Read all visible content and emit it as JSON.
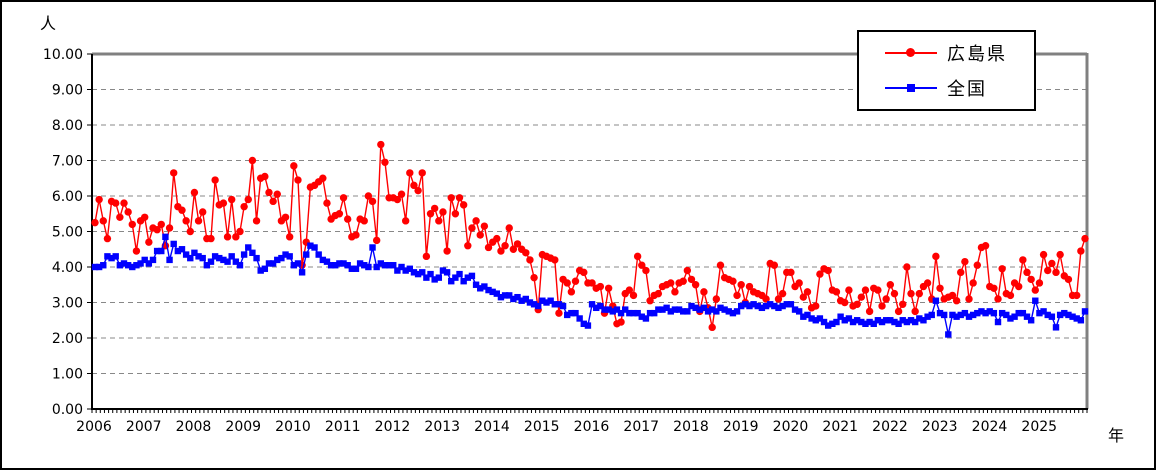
{
  "chart_data": {
    "type": "line",
    "title": "",
    "ylabel": "人",
    "xlabel": "年",
    "ylim": [
      0,
      10
    ],
    "ytick_step": 1,
    "ytick_labels": [
      "0.00",
      "1.00",
      "2.00",
      "3.00",
      "4.00",
      "5.00",
      "6.00",
      "7.00",
      "8.00",
      "9.00",
      "10.00"
    ],
    "x_years": [
      "2006",
      "2007",
      "2008",
      "2009",
      "2010",
      "2011",
      "2012",
      "2013",
      "2014",
      "2015",
      "2016",
      "2017",
      "2018",
      "2019",
      "2020",
      "2021",
      "2022",
      "2023",
      "2024",
      "2025"
    ],
    "x_unit": "month",
    "points_per_year": 12,
    "grid": "horizontal-dashed",
    "legend_position": "top-right",
    "colors": {
      "grid": "#888888",
      "frame_top_right": "#808080",
      "axis": "#000000",
      "background": "#ffffff"
    },
    "series": [
      {
        "name": "広島県",
        "color": "#ff0000",
        "marker": "circle",
        "values": [
          5.25,
          5.9,
          5.3,
          4.8,
          5.85,
          5.8,
          5.4,
          5.8,
          5.55,
          5.2,
          4.45,
          5.3,
          5.4,
          4.7,
          5.1,
          5.05,
          5.2,
          4.6,
          5.1,
          6.65,
          5.7,
          5.6,
          5.3,
          5.0,
          6.1,
          5.3,
          5.55,
          4.8,
          4.8,
          6.45,
          5.75,
          5.8,
          4.85,
          5.9,
          4.85,
          5.0,
          5.7,
          5.9,
          7.0,
          5.3,
          6.5,
          6.55,
          6.1,
          5.85,
          6.05,
          5.3,
          5.4,
          4.85,
          6.85,
          6.45,
          4.05,
          4.7,
          6.25,
          6.3,
          6.4,
          6.5,
          5.8,
          5.35,
          5.45,
          5.5,
          5.95,
          5.35,
          4.85,
          4.9,
          5.35,
          5.3,
          6.0,
          5.85,
          4.75,
          7.45,
          6.95,
          5.95,
          5.95,
          5.9,
          6.05,
          5.3,
          6.65,
          6.3,
          6.15,
          6.65,
          4.3,
          5.5,
          5.65,
          5.3,
          5.55,
          4.45,
          5.95,
          5.5,
          5.95,
          5.75,
          4.6,
          5.1,
          5.3,
          4.9,
          5.15,
          4.55,
          4.7,
          4.8,
          4.45,
          4.6,
          5.1,
          4.5,
          4.65,
          4.5,
          4.4,
          4.2,
          3.7,
          2.8,
          4.35,
          4.3,
          4.25,
          4.2,
          2.7,
          3.65,
          3.55,
          3.3,
          3.6,
          3.9,
          3.85,
          3.55,
          3.55,
          3.4,
          3.45,
          2.7,
          3.4,
          2.9,
          2.4,
          2.45,
          3.25,
          3.35,
          3.2,
          4.3,
          4.05,
          3.9,
          3.05,
          3.2,
          3.25,
          3.45,
          3.5,
          3.55,
          3.3,
          3.55,
          3.6,
          3.9,
          3.65,
          3.5,
          2.75,
          3.3,
          2.85,
          2.3,
          3.1,
          4.05,
          3.7,
          3.65,
          3.6,
          3.2,
          3.5,
          3.0,
          3.45,
          3.3,
          3.25,
          3.2,
          3.1,
          4.1,
          4.05,
          3.1,
          3.25,
          3.85,
          3.85,
          3.45,
          3.55,
          3.15,
          3.3,
          2.85,
          2.9,
          3.8,
          3.95,
          3.9,
          3.35,
          3.3,
          3.05,
          3.0,
          3.35,
          2.9,
          2.95,
          3.15,
          3.35,
          2.75,
          3.4,
          3.35,
          2.9,
          3.1,
          3.5,
          3.25,
          2.75,
          2.95,
          4.0,
          3.25,
          2.75,
          3.25,
          3.45,
          3.55,
          3.1,
          4.3,
          3.4,
          3.1,
          3.15,
          3.2,
          3.05,
          3.85,
          4.15,
          3.1,
          3.55,
          4.05,
          4.55,
          4.6,
          3.45,
          3.4,
          3.1,
          3.95,
          3.25,
          3.2,
          3.55,
          3.45,
          4.2,
          3.85,
          3.65,
          3.35,
          3.55,
          4.35,
          3.9,
          4.1,
          3.85,
          4.35,
          3.75,
          3.65,
          3.2,
          3.2,
          4.45,
          4.8
        ]
      },
      {
        "name": "全国",
        "color": "#0000ff",
        "marker": "square",
        "values": [
          4.0,
          4.0,
          4.05,
          4.3,
          4.25,
          4.3,
          4.05,
          4.1,
          4.05,
          4.0,
          4.05,
          4.1,
          4.2,
          4.1,
          4.2,
          4.45,
          4.45,
          4.85,
          4.2,
          4.65,
          4.45,
          4.5,
          4.35,
          4.25,
          4.4,
          4.3,
          4.25,
          4.05,
          4.15,
          4.3,
          4.25,
          4.2,
          4.15,
          4.3,
          4.15,
          4.05,
          4.35,
          4.55,
          4.4,
          4.25,
          3.9,
          3.95,
          4.1,
          4.1,
          4.2,
          4.25,
          4.35,
          4.3,
          4.05,
          4.1,
          3.85,
          4.35,
          4.6,
          4.55,
          4.35,
          4.2,
          4.15,
          4.05,
          4.05,
          4.1,
          4.1,
          4.05,
          3.95,
          3.95,
          4.1,
          4.05,
          4.0,
          4.55,
          4.0,
          4.1,
          4.05,
          4.05,
          4.05,
          3.9,
          4.0,
          3.9,
          3.95,
          3.85,
          3.8,
          3.85,
          3.7,
          3.8,
          3.65,
          3.7,
          3.9,
          3.85,
          3.6,
          3.7,
          3.8,
          3.6,
          3.7,
          3.75,
          3.5,
          3.4,
          3.45,
          3.35,
          3.3,
          3.25,
          3.15,
          3.2,
          3.2,
          3.1,
          3.15,
          3.05,
          3.1,
          3.0,
          2.95,
          2.9,
          3.05,
          3.0,
          3.05,
          2.95,
          2.95,
          2.9,
          2.65,
          2.7,
          2.7,
          2.55,
          2.4,
          2.35,
          2.95,
          2.85,
          2.9,
          2.8,
          2.8,
          2.75,
          2.8,
          2.7,
          2.8,
          2.7,
          2.7,
          2.7,
          2.6,
          2.55,
          2.7,
          2.7,
          2.8,
          2.8,
          2.85,
          2.75,
          2.8,
          2.8,
          2.75,
          2.75,
          2.9,
          2.85,
          2.8,
          2.85,
          2.75,
          2.8,
          2.75,
          2.85,
          2.8,
          2.75,
          2.7,
          2.75,
          2.9,
          2.95,
          2.9,
          2.95,
          2.9,
          2.85,
          2.9,
          2.95,
          2.9,
          2.85,
          2.9,
          2.95,
          2.95,
          2.8,
          2.75,
          2.6,
          2.65,
          2.55,
          2.5,
          2.55,
          2.45,
          2.35,
          2.4,
          2.45,
          2.6,
          2.5,
          2.55,
          2.45,
          2.5,
          2.45,
          2.4,
          2.45,
          2.4,
          2.5,
          2.45,
          2.5,
          2.5,
          2.45,
          2.4,
          2.5,
          2.45,
          2.5,
          2.45,
          2.55,
          2.5,
          2.6,
          2.65,
          3.05,
          2.7,
          2.65,
          2.1,
          2.65,
          2.6,
          2.65,
          2.7,
          2.6,
          2.65,
          2.7,
          2.75,
          2.7,
          2.75,
          2.7,
          2.45,
          2.7,
          2.65,
          2.55,
          2.6,
          2.7,
          2.7,
          2.6,
          2.5,
          3.05,
          2.7,
          2.75,
          2.65,
          2.6,
          2.3,
          2.65,
          2.7,
          2.65,
          2.6,
          2.55,
          2.5,
          2.75
        ]
      }
    ]
  }
}
